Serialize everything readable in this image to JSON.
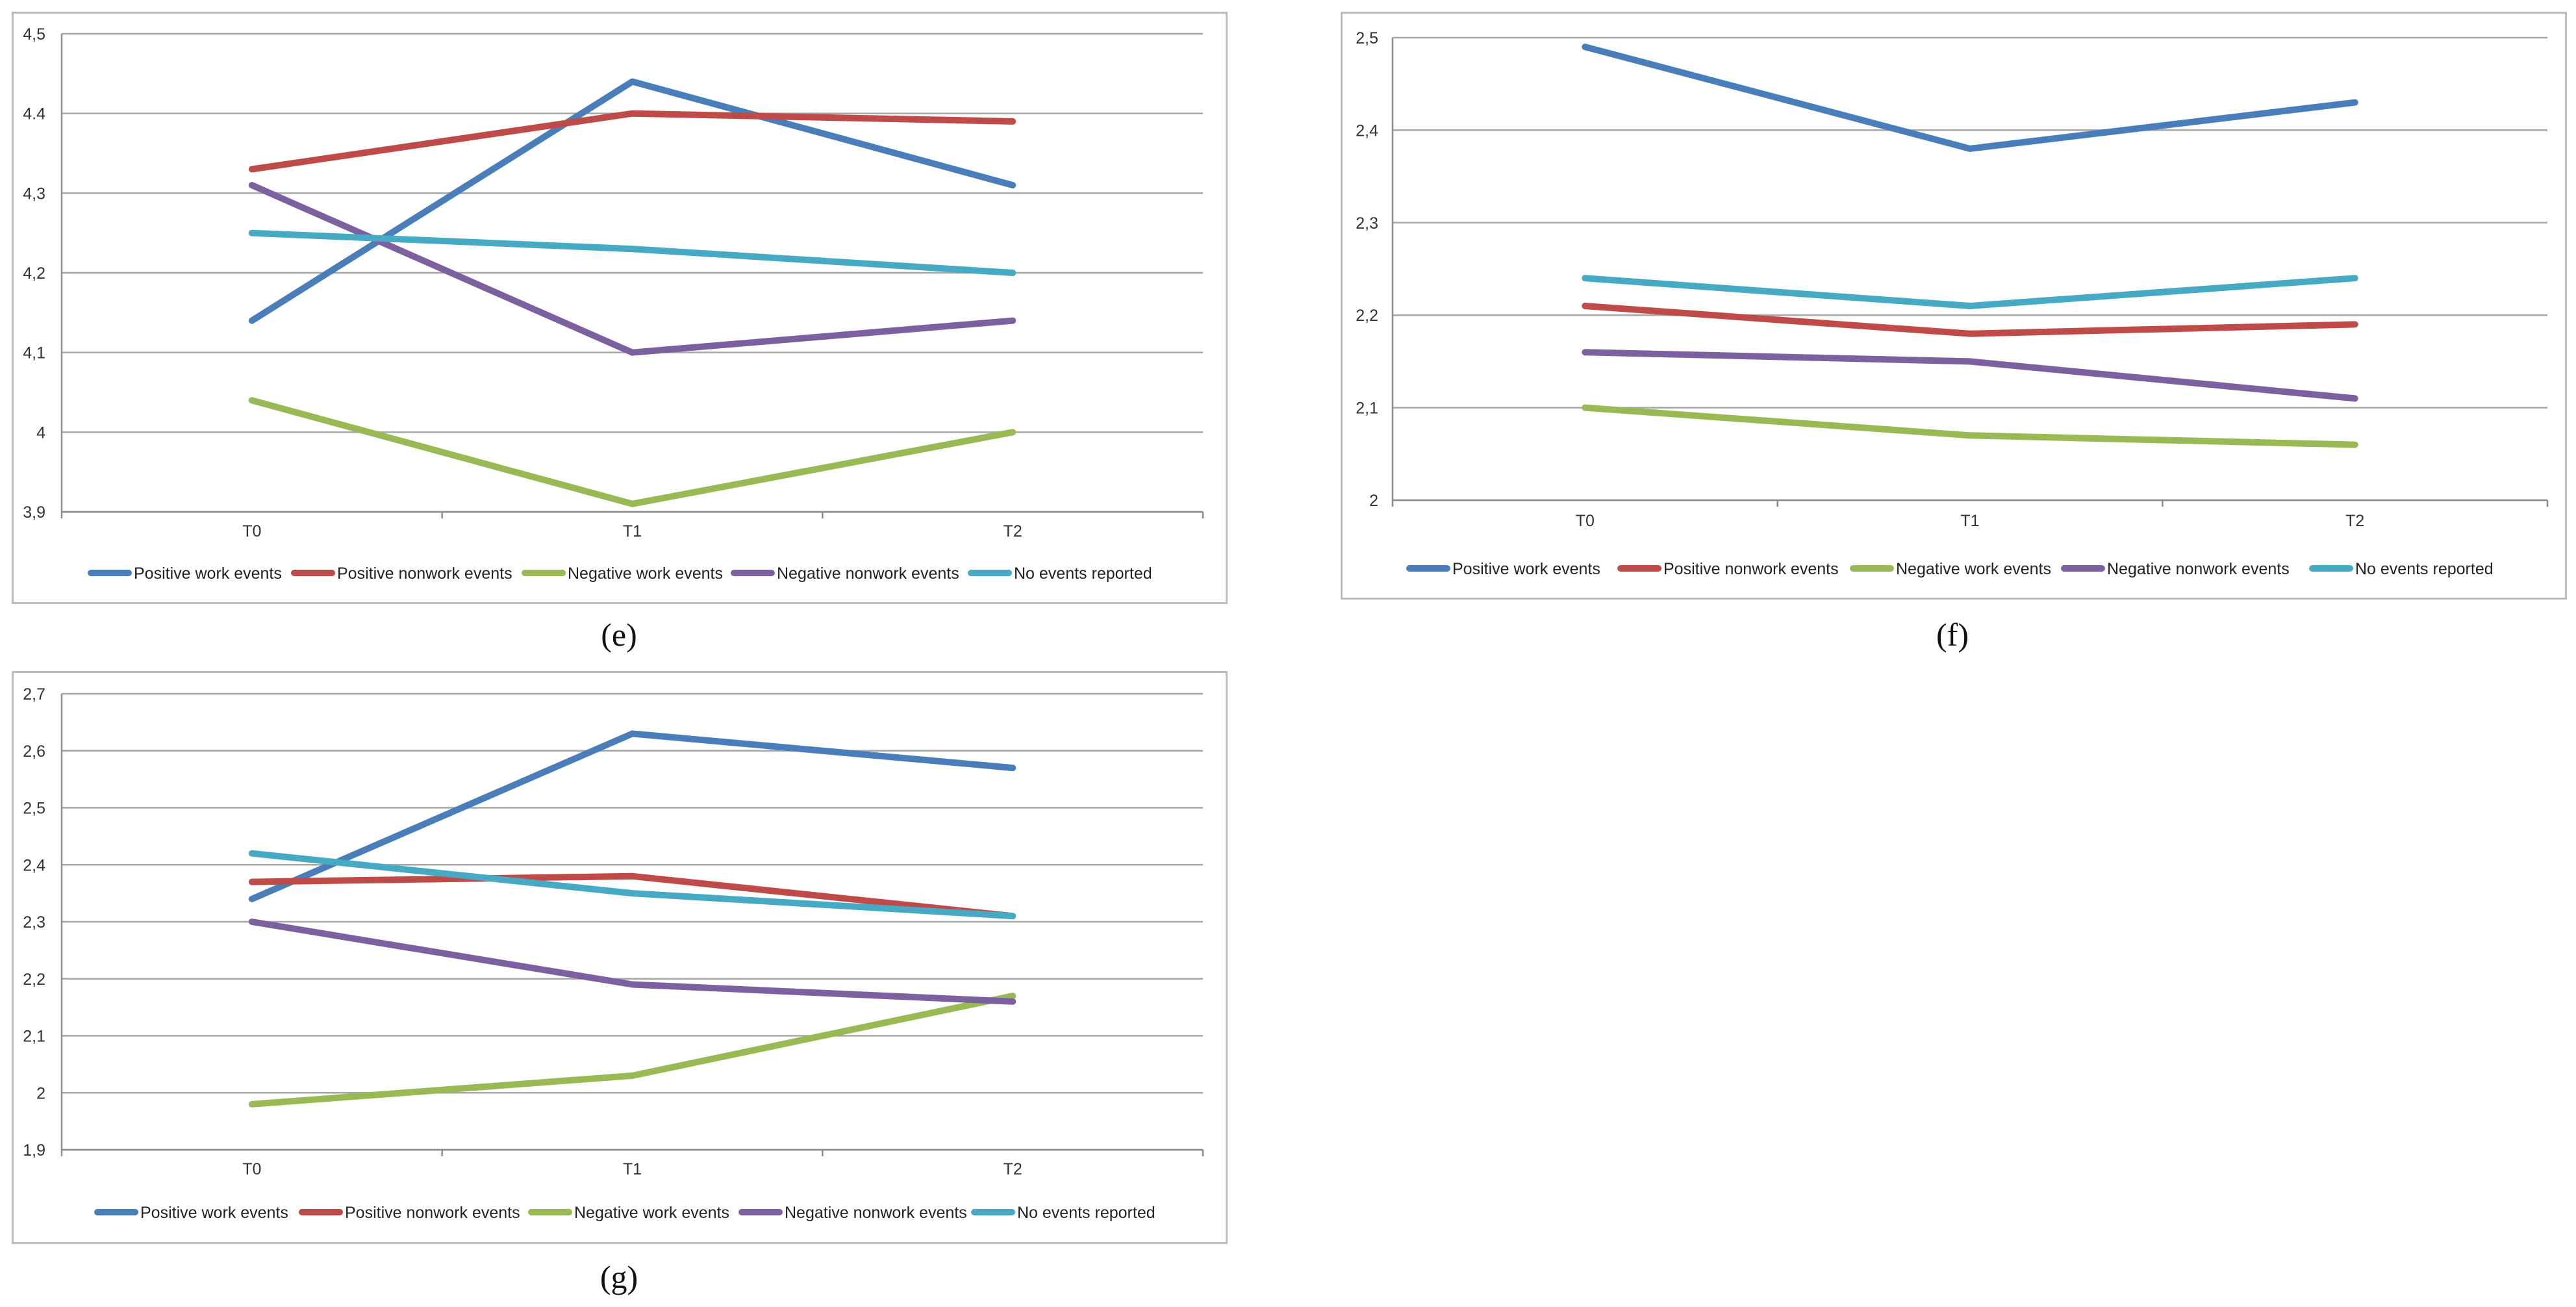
{
  "chart_data": [
    {
      "type": "line",
      "panel": "e",
      "caption": "(e)",
      "categories": [
        "T0",
        "T1",
        "T2"
      ],
      "ylim": [
        3.9,
        4.5
      ],
      "yticks": [
        "3,9",
        "4",
        "4,1",
        "4,2",
        "4,3",
        "4.4",
        "4,5"
      ],
      "grid": true,
      "legend_position": "bottom",
      "series": [
        {
          "name": "Positive work events",
          "color": "#4a7ebb",
          "values": [
            4.14,
            4.44,
            4.31
          ]
        },
        {
          "name": "Positive nonwork events",
          "color": "#be4b48",
          "values": [
            4.33,
            4.4,
            4.39
          ]
        },
        {
          "name": "Negative work events",
          "color": "#98b954",
          "values": [
            4.04,
            3.91,
            4.0
          ]
        },
        {
          "name": "Negative nonwork events",
          "color": "#7d60a0",
          "values": [
            4.31,
            4.1,
            4.14
          ]
        },
        {
          "name": "No events reported",
          "color": "#46aac5",
          "values": [
            4.25,
            4.23,
            4.2
          ]
        }
      ]
    },
    {
      "type": "line",
      "panel": "f",
      "caption": "(f)",
      "categories": [
        "T0",
        "T1",
        "T2"
      ],
      "ylim": [
        2.0,
        2.5
      ],
      "yticks": [
        "2",
        "2,1",
        "2,2",
        "2,3",
        "2,4",
        "2,5"
      ],
      "grid": true,
      "legend_position": "bottom",
      "series": [
        {
          "name": "Positive work events",
          "color": "#4a7ebb",
          "values": [
            2.49,
            2.38,
            2.43
          ]
        },
        {
          "name": "Positive nonwork events",
          "color": "#be4b48",
          "values": [
            2.21,
            2.18,
            2.19
          ]
        },
        {
          "name": "Negative work events",
          "color": "#98b954",
          "values": [
            2.1,
            2.07,
            2.06
          ]
        },
        {
          "name": "Negative nonwork events",
          "color": "#7d60a0",
          "values": [
            2.16,
            2.15,
            2.11
          ]
        },
        {
          "name": "No events reported",
          "color": "#46aac5",
          "values": [
            2.24,
            2.21,
            2.24
          ]
        }
      ]
    },
    {
      "type": "line",
      "panel": "g",
      "caption": "(g)",
      "categories": [
        "T0",
        "T1",
        "T2"
      ],
      "ylim": [
        1.9,
        2.7
      ],
      "yticks": [
        "1,9",
        "2",
        "2,1",
        "2,2",
        "2,3",
        "2,4",
        "2,5",
        "2,6",
        "2,7"
      ],
      "grid": true,
      "legend_position": "bottom",
      "series": [
        {
          "name": "Positive work events",
          "color": "#4a7ebb",
          "values": [
            2.34,
            2.63,
            2.57
          ]
        },
        {
          "name": "Positive nonwork events",
          "color": "#be4b48",
          "values": [
            2.37,
            2.38,
            2.31
          ]
        },
        {
          "name": "Negative work events",
          "color": "#98b954",
          "values": [
            1.98,
            2.03,
            2.17
          ]
        },
        {
          "name": "Negative nonwork events",
          "color": "#7d60a0",
          "values": [
            2.3,
            2.19,
            2.16
          ]
        },
        {
          "name": "No events reported",
          "color": "#46aac5",
          "values": [
            2.42,
            2.35,
            2.31
          ]
        }
      ]
    }
  ]
}
